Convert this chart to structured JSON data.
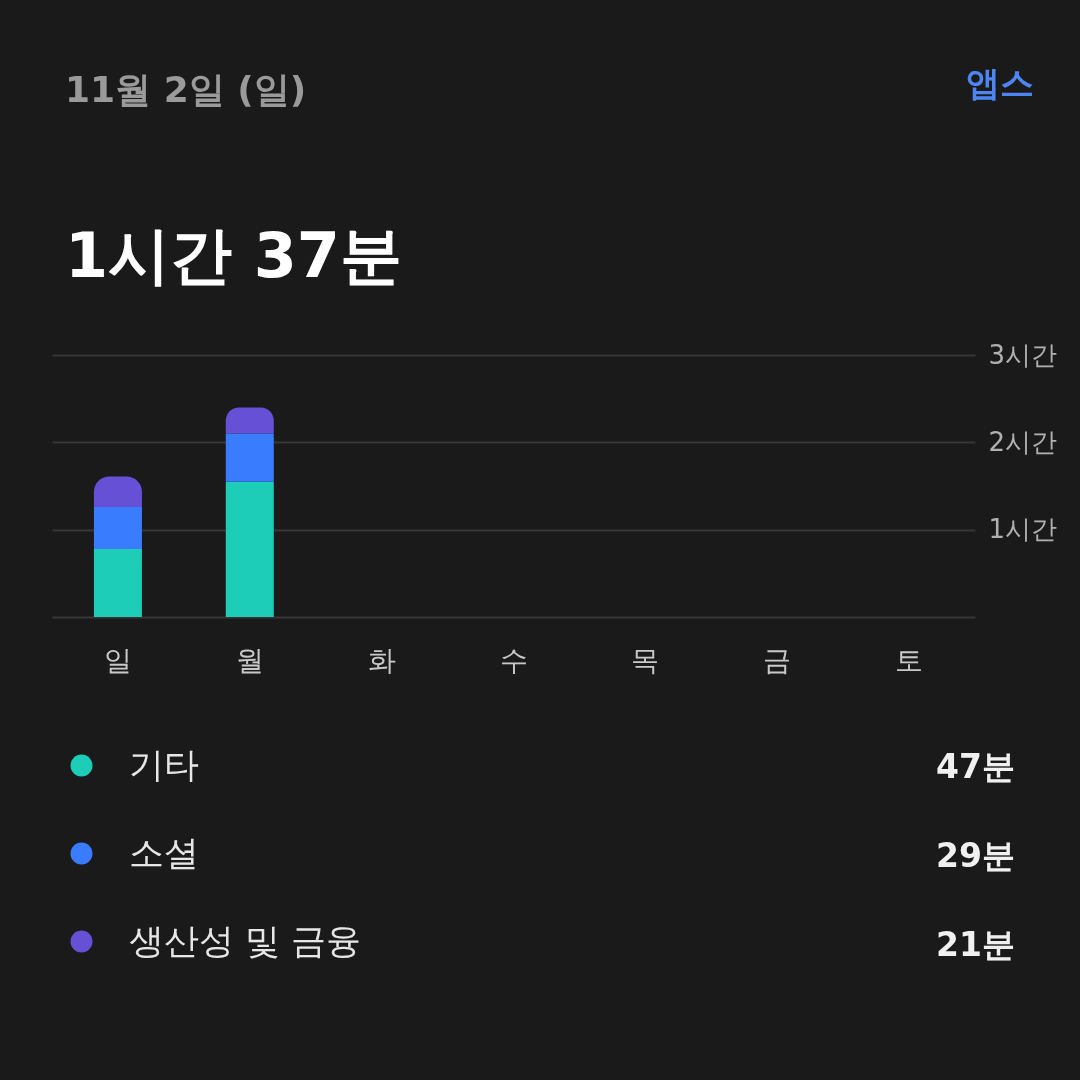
{
  "chart_data": {
    "type": "bar",
    "title": "11월 2일 (일)",
    "subtitle": "1시간 37분",
    "categories": [
      "일",
      "월",
      "화",
      "수",
      "목",
      "금",
      "토"
    ],
    "series": [
      {
        "name": "기타",
        "color": "#1ecdb8",
        "values": [
          0.78,
          1.55,
          null,
          null,
          null,
          null,
          null
        ]
      },
      {
        "name": "소셜",
        "color": "#3a7cfe",
        "values": [
          0.48,
          0.55,
          null,
          null,
          null,
          null,
          null
        ]
      },
      {
        "name": "생산성 및 금융",
        "color": "#6550d6",
        "values": [
          0.35,
          0.3,
          null,
          null,
          null,
          null,
          null
        ]
      }
    ],
    "stacked": true,
    "ylim": [
      0,
      3
    ],
    "yticks": [
      {
        "value": 0,
        "label": null
      },
      {
        "value": 1,
        "label": "1시간"
      },
      {
        "value": 2,
        "label": "2시간"
      },
      {
        "value": 3,
        "label": "3시간"
      }
    ],
    "grid": "y",
    "legend": "bottom",
    "annotations": [
      "앱스",
      "47분",
      "29분",
      "21분"
    ]
  }
}
